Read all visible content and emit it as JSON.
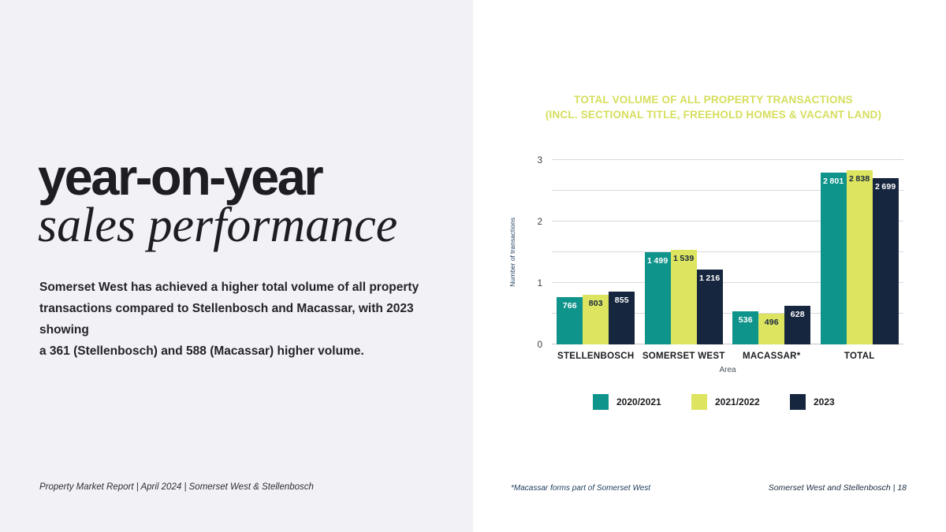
{
  "slide": {
    "left": {
      "heading_sans": "year-on-year",
      "heading_serif": "sales performance",
      "body_lines": [
        "Somerset West has achieved a higher total volume of all property",
        "transactions compared to Stellenbosch and Macassar, with 2023 showing",
        "a 361 (Stellenbosch) and 588 (Macassar) higher volume."
      ],
      "footer": "Property Market Report  |  April 2024  |  Somerset West & Stellenbosch"
    },
    "right": {
      "title_lines": [
        "TOTAL VOLUME OF ALL PROPERTY TRANSACTIONS",
        "(INCL. SECTIONAL TITLE, FREEHOLD HOMES & VACANT LAND)"
      ],
      "footnote": "*Macassar forms part of Somerset West",
      "footer": "Somerset West and Stellenbosch  |  18"
    }
  },
  "chart_data": {
    "type": "bar",
    "title": "TOTAL VOLUME OF ALL PROPERTY TRANSACTIONS (INCL. SECTIONAL TITLE, FREEHOLD HOMES & VACANT LAND)",
    "categories": [
      "STELLENBOSCH",
      "SOMERSET WEST",
      "MACASSAR*",
      "TOTAL"
    ],
    "series": [
      {
        "name": "2020/2021",
        "color": "#0f948b",
        "label_color": "#ffffff",
        "values": [
          766,
          1499,
          536,
          2801
        ]
      },
      {
        "name": "2021/2022",
        "color": "#dde45f",
        "label_color": "#16263e",
        "values": [
          803,
          1539,
          496,
          2838
        ]
      },
      {
        "name": "2023",
        "color": "#16263e",
        "label_color": "#ffffff",
        "values": [
          855,
          1216,
          628,
          2699
        ]
      }
    ],
    "xlabel": "Area",
    "ylabel": "Number of transactions",
    "y_ticks": [
      0,
      1,
      2,
      3
    ],
    "ylim": [
      0,
      3
    ],
    "y_value_scale": 1000,
    "gridline_step": 0.5,
    "grid": true,
    "legend_position": "bottom"
  },
  "colors": {
    "left_bg": "#f1f1f6",
    "right_bg": "#ffffff",
    "title_text": "#d6de5c",
    "heading_text": "#1d1d22",
    "gridline": "#d9d9de",
    "axis_text": "#1c3a5c",
    "series_teal": "#0f948b",
    "series_yellow": "#dde45f",
    "series_navy": "#16263e"
  }
}
